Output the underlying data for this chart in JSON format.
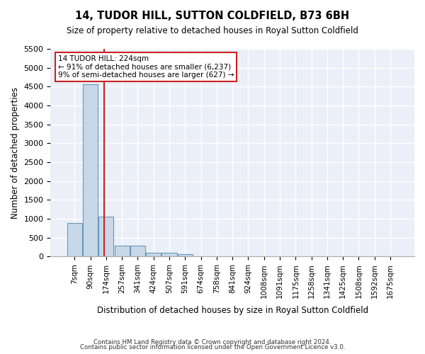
{
  "title": "14, TUDOR HILL, SUTTON COLDFIELD, B73 6BH",
  "subtitle": "Size of property relative to detached houses in Royal Sutton Coldfield",
  "xlabel": "Distribution of detached houses by size in Royal Sutton Coldfield",
  "ylabel": "Number of detached properties",
  "footnote1": "Contains HM Land Registry data © Crown copyright and database right 2024.",
  "footnote2": "Contains public sector information licensed under the Open Government Licence v3.0.",
  "bar_color": "#c8d8e8",
  "bar_edge_color": "#6699bb",
  "highlight_color": "#cc2222",
  "background_color": "#eaeff8",
  "grid_color": "#ffffff",
  "ylim": [
    0,
    5500
  ],
  "yticks": [
    0,
    500,
    1000,
    1500,
    2000,
    2500,
    3000,
    3500,
    4000,
    4500,
    5000,
    5500
  ],
  "bin_labels": [
    "7sqm",
    "90sqm",
    "174sqm",
    "257sqm",
    "341sqm",
    "424sqm",
    "507sqm",
    "591sqm",
    "674sqm",
    "758sqm",
    "841sqm",
    "924sqm",
    "1008sqm",
    "1091sqm",
    "1175sqm",
    "1258sqm",
    "1341sqm",
    "1425sqm",
    "1508sqm",
    "1592sqm",
    "1675sqm"
  ],
  "bin_values": [
    880,
    4560,
    1060,
    290,
    290,
    95,
    95,
    55,
    0,
    0,
    0,
    0,
    0,
    0,
    0,
    0,
    0,
    0,
    0,
    0,
    0
  ],
  "annotation_line1": "14 TUDOR HILL: 224sqm",
  "annotation_line2": "← 91% of detached houses are smaller (6,237)",
  "annotation_line3": "9% of semi-detached houses are larger (627) →",
  "vline_x_bin": 1.85
}
